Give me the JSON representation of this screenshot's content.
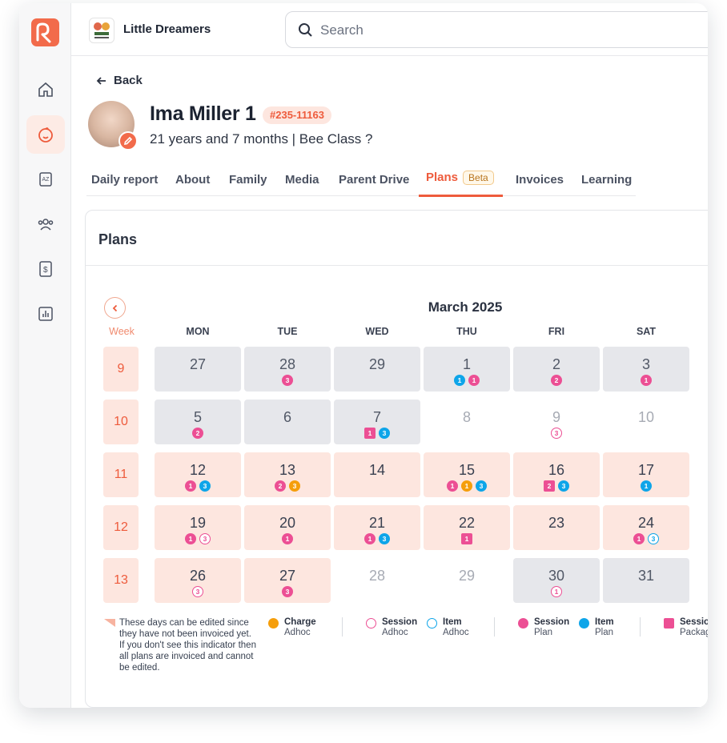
{
  "app": {
    "school_name": "Little Dreamers",
    "search_placeholder": "Search"
  },
  "sidebar": {
    "items": [
      {
        "name": "home"
      },
      {
        "name": "child"
      },
      {
        "name": "learning"
      },
      {
        "name": "people"
      },
      {
        "name": "billing"
      },
      {
        "name": "reports"
      }
    ]
  },
  "profile": {
    "back_label": "Back",
    "name": "Ima Miller 1",
    "id_badge": "#235-11163",
    "subtitle": "21 years and 7 months | Bee Class ?"
  },
  "tabs": [
    {
      "label": "Daily report"
    },
    {
      "label": "About"
    },
    {
      "label": "Family"
    },
    {
      "label": "Media"
    },
    {
      "label": "Parent Drive"
    },
    {
      "label": "Plans",
      "badge": "Beta",
      "active": true
    },
    {
      "label": "Invoices"
    },
    {
      "label": "Learning"
    }
  ],
  "plans": {
    "title": "Plans",
    "month": "March 2025",
    "week_header": "Week",
    "day_headers": [
      "MON",
      "TUE",
      "WED",
      "THU",
      "FRI",
      "SAT"
    ],
    "weeks": [
      {
        "week": "9",
        "days": [
          {
            "num": "27",
            "state": "grey",
            "marks": []
          },
          {
            "num": "28",
            "state": "grey",
            "marks": [
              {
                "v": "3",
                "color": "#ec4f94",
                "shape": "circle"
              }
            ]
          },
          {
            "num": "29",
            "state": "grey",
            "marks": []
          },
          {
            "num": "1",
            "state": "grey",
            "marks": [
              {
                "v": "1",
                "color": "#0ea5e9",
                "shape": "circle"
              },
              {
                "v": "1",
                "color": "#ec4f94",
                "shape": "circle"
              }
            ]
          },
          {
            "num": "2",
            "state": "grey",
            "marks": [
              {
                "v": "2",
                "color": "#ec4f94",
                "shape": "circle"
              }
            ]
          },
          {
            "num": "3",
            "state": "grey",
            "marks": [
              {
                "v": "1",
                "color": "#ec4f94",
                "shape": "circle"
              }
            ]
          }
        ]
      },
      {
        "week": "10",
        "days": [
          {
            "num": "5",
            "state": "grey",
            "marks": [
              {
                "v": "2",
                "color": "#ec4f94",
                "shape": "circle"
              }
            ]
          },
          {
            "num": "6",
            "state": "grey",
            "marks": []
          },
          {
            "num": "7",
            "state": "grey",
            "marks": [
              {
                "v": "1",
                "color": "#ec4f94",
                "shape": "square"
              },
              {
                "v": "3",
                "color": "#0ea5e9",
                "shape": "circle"
              }
            ]
          },
          {
            "num": "8",
            "state": "plain",
            "marks": []
          },
          {
            "num": "9",
            "state": "plain",
            "marks": [
              {
                "v": "3",
                "color": "#ec4f94",
                "shape": "outline"
              }
            ]
          },
          {
            "num": "10",
            "state": "plain",
            "marks": []
          }
        ]
      },
      {
        "week": "11",
        "days": [
          {
            "num": "12",
            "state": "pink",
            "marks": [
              {
                "v": "1",
                "color": "#ec4f94",
                "shape": "circle"
              },
              {
                "v": "3",
                "color": "#0ea5e9",
                "shape": "circle"
              }
            ]
          },
          {
            "num": "13",
            "state": "pink",
            "marks": [
              {
                "v": "2",
                "color": "#ec4f94",
                "shape": "circle"
              },
              {
                "v": "3",
                "color": "#f59e0b",
                "shape": "circle"
              }
            ]
          },
          {
            "num": "14",
            "state": "pink",
            "marks": []
          },
          {
            "num": "15",
            "state": "pink",
            "marks": [
              {
                "v": "1",
                "color": "#ec4f94",
                "shape": "circle"
              },
              {
                "v": "1",
                "color": "#f59e0b",
                "shape": "circle"
              },
              {
                "v": "3",
                "color": "#0ea5e9",
                "shape": "circle"
              }
            ]
          },
          {
            "num": "16",
            "state": "pink",
            "marks": [
              {
                "v": "2",
                "color": "#ec4f94",
                "shape": "square"
              },
              {
                "v": "3",
                "color": "#0ea5e9",
                "shape": "circle"
              }
            ]
          },
          {
            "num": "17",
            "state": "pink",
            "marks": [
              {
                "v": "1",
                "color": "#0ea5e9",
                "shape": "circle"
              }
            ]
          }
        ]
      },
      {
        "week": "12",
        "days": [
          {
            "num": "19",
            "state": "pink",
            "marks": [
              {
                "v": "1",
                "color": "#ec4f94",
                "shape": "circle"
              },
              {
                "v": "3",
                "color": "#ec4f94",
                "shape": "outline"
              }
            ]
          },
          {
            "num": "20",
            "state": "pink",
            "marks": [
              {
                "v": "1",
                "color": "#ec4f94",
                "shape": "circle"
              }
            ]
          },
          {
            "num": "21",
            "state": "pink",
            "marks": [
              {
                "v": "1",
                "color": "#ec4f94",
                "shape": "circle"
              },
              {
                "v": "3",
                "color": "#0ea5e9",
                "shape": "circle"
              }
            ]
          },
          {
            "num": "22",
            "state": "pink",
            "marks": [
              {
                "v": "1",
                "color": "#ec4f94",
                "shape": "square"
              }
            ]
          },
          {
            "num": "23",
            "state": "pink",
            "marks": []
          },
          {
            "num": "24",
            "state": "pink",
            "marks": [
              {
                "v": "1",
                "color": "#ec4f94",
                "shape": "circle"
              },
              {
                "v": "3",
                "color": "#0ea5e9",
                "shape": "outline"
              }
            ]
          }
        ]
      },
      {
        "week": "13",
        "days": [
          {
            "num": "26",
            "state": "pink",
            "marks": [
              {
                "v": "3",
                "color": "#ec4f94",
                "shape": "outline"
              }
            ]
          },
          {
            "num": "27",
            "state": "pink",
            "marks": [
              {
                "v": "3",
                "color": "#ec4f94",
                "shape": "circle"
              }
            ]
          },
          {
            "num": "28",
            "state": "plain",
            "marks": []
          },
          {
            "num": "29",
            "state": "plain",
            "marks": []
          },
          {
            "num": "30",
            "state": "grey",
            "marks": [
              {
                "v": "1",
                "color": "#ec4f94",
                "shape": "outline"
              }
            ]
          },
          {
            "num": "31",
            "state": "grey",
            "marks": []
          }
        ]
      }
    ],
    "legend": {
      "note": "These days can be edited since they have not been invoiced yet.\nIf you don't see this indicator then all plans are invoiced and cannot be edited.",
      "items": [
        {
          "title": "Charge",
          "sub": "Adhoc",
          "color": "#f59e0b",
          "shape": "dot"
        },
        {
          "title": "Session",
          "sub": "Adhoc",
          "color": "#ec4f94",
          "shape": "ring"
        },
        {
          "title": "Item",
          "sub": "Adhoc",
          "color": "#0ea5e9",
          "shape": "ring"
        },
        {
          "title": "Session",
          "sub": "Plan",
          "color": "#ec4f94",
          "shape": "dot"
        },
        {
          "title": "Item",
          "sub": "Plan",
          "color": "#0ea5e9",
          "shape": "dot"
        },
        {
          "title": "Session",
          "sub": "Package",
          "color": "#ec4f94",
          "shape": "square"
        }
      ]
    }
  }
}
